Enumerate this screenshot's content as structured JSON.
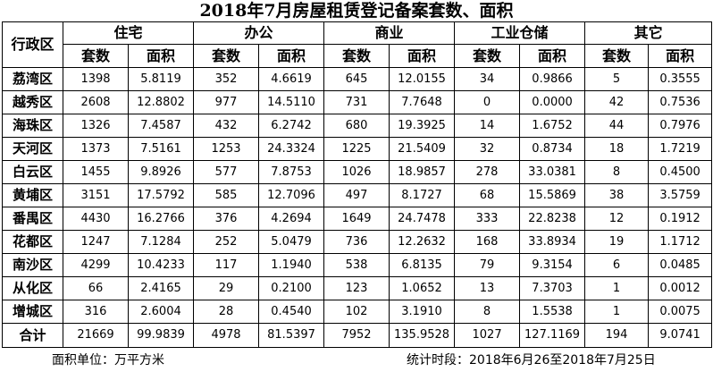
{
  "title": "2018年7月房屋租赁登记备案套数、面积",
  "header": {
    "district_label": "行政区",
    "groups": [
      "住宅",
      "办公",
      "商业",
      "工业仓储",
      "其它"
    ],
    "count_label": "套数",
    "area_label": "面积"
  },
  "rows": [
    {
      "district": "荔湾区",
      "values": [
        "1398",
        "5.8119",
        "352",
        "4.6619",
        "645",
        "12.0155",
        "34",
        "0.9866",
        "5",
        "0.3555"
      ]
    },
    {
      "district": "越秀区",
      "values": [
        "2608",
        "12.8802",
        "977",
        "14.5110",
        "731",
        "7.7648",
        "0",
        "0.0000",
        "42",
        "0.7536"
      ]
    },
    {
      "district": "海珠区",
      "values": [
        "1326",
        "7.4587",
        "432",
        "6.2742",
        "680",
        "19.3925",
        "14",
        "1.6752",
        "44",
        "0.7976"
      ]
    },
    {
      "district": "天河区",
      "values": [
        "1373",
        "7.5161",
        "1253",
        "24.3324",
        "1225",
        "21.5409",
        "32",
        "0.8734",
        "18",
        "1.7219"
      ]
    },
    {
      "district": "白云区",
      "values": [
        "1455",
        "9.8926",
        "577",
        "7.8753",
        "1026",
        "18.9857",
        "278",
        "33.0381",
        "8",
        "0.4500"
      ]
    },
    {
      "district": "黄埔区",
      "values": [
        "3151",
        "17.5792",
        "585",
        "12.7096",
        "497",
        "8.1727",
        "68",
        "15.5869",
        "38",
        "3.5759"
      ]
    },
    {
      "district": "番禺区",
      "values": [
        "4430",
        "16.2766",
        "376",
        "4.2694",
        "1649",
        "24.7478",
        "333",
        "22.8238",
        "12",
        "0.1912"
      ]
    },
    {
      "district": "花都区",
      "values": [
        "1247",
        "7.1284",
        "252",
        "5.0479",
        "736",
        "12.2632",
        "168",
        "33.8934",
        "19",
        "1.1712"
      ]
    },
    {
      "district": "南沙区",
      "values": [
        "4299",
        "10.4233",
        "117",
        "1.1940",
        "538",
        "6.8135",
        "79",
        "9.3154",
        "6",
        "0.0485"
      ]
    },
    {
      "district": "从化区",
      "values": [
        "66",
        "2.4165",
        "29",
        "0.2100",
        "123",
        "1.0652",
        "13",
        "7.3703",
        "1",
        "0.0012"
      ]
    },
    {
      "district": "增城区",
      "values": [
        "316",
        "2.6004",
        "28",
        "0.4540",
        "102",
        "3.1910",
        "8",
        "1.5538",
        "1",
        "0.0075"
      ]
    }
  ],
  "total": {
    "label": "合计",
    "values": [
      "21669",
      "99.9839",
      "4978",
      "81.5397",
      "7952",
      "135.9528",
      "1027",
      "127.1169",
      "194",
      "9.0741"
    ]
  },
  "footer": {
    "unit": "面积单位：万平方米",
    "period": "统计时段：2018年6月26至2018年7月25日"
  }
}
